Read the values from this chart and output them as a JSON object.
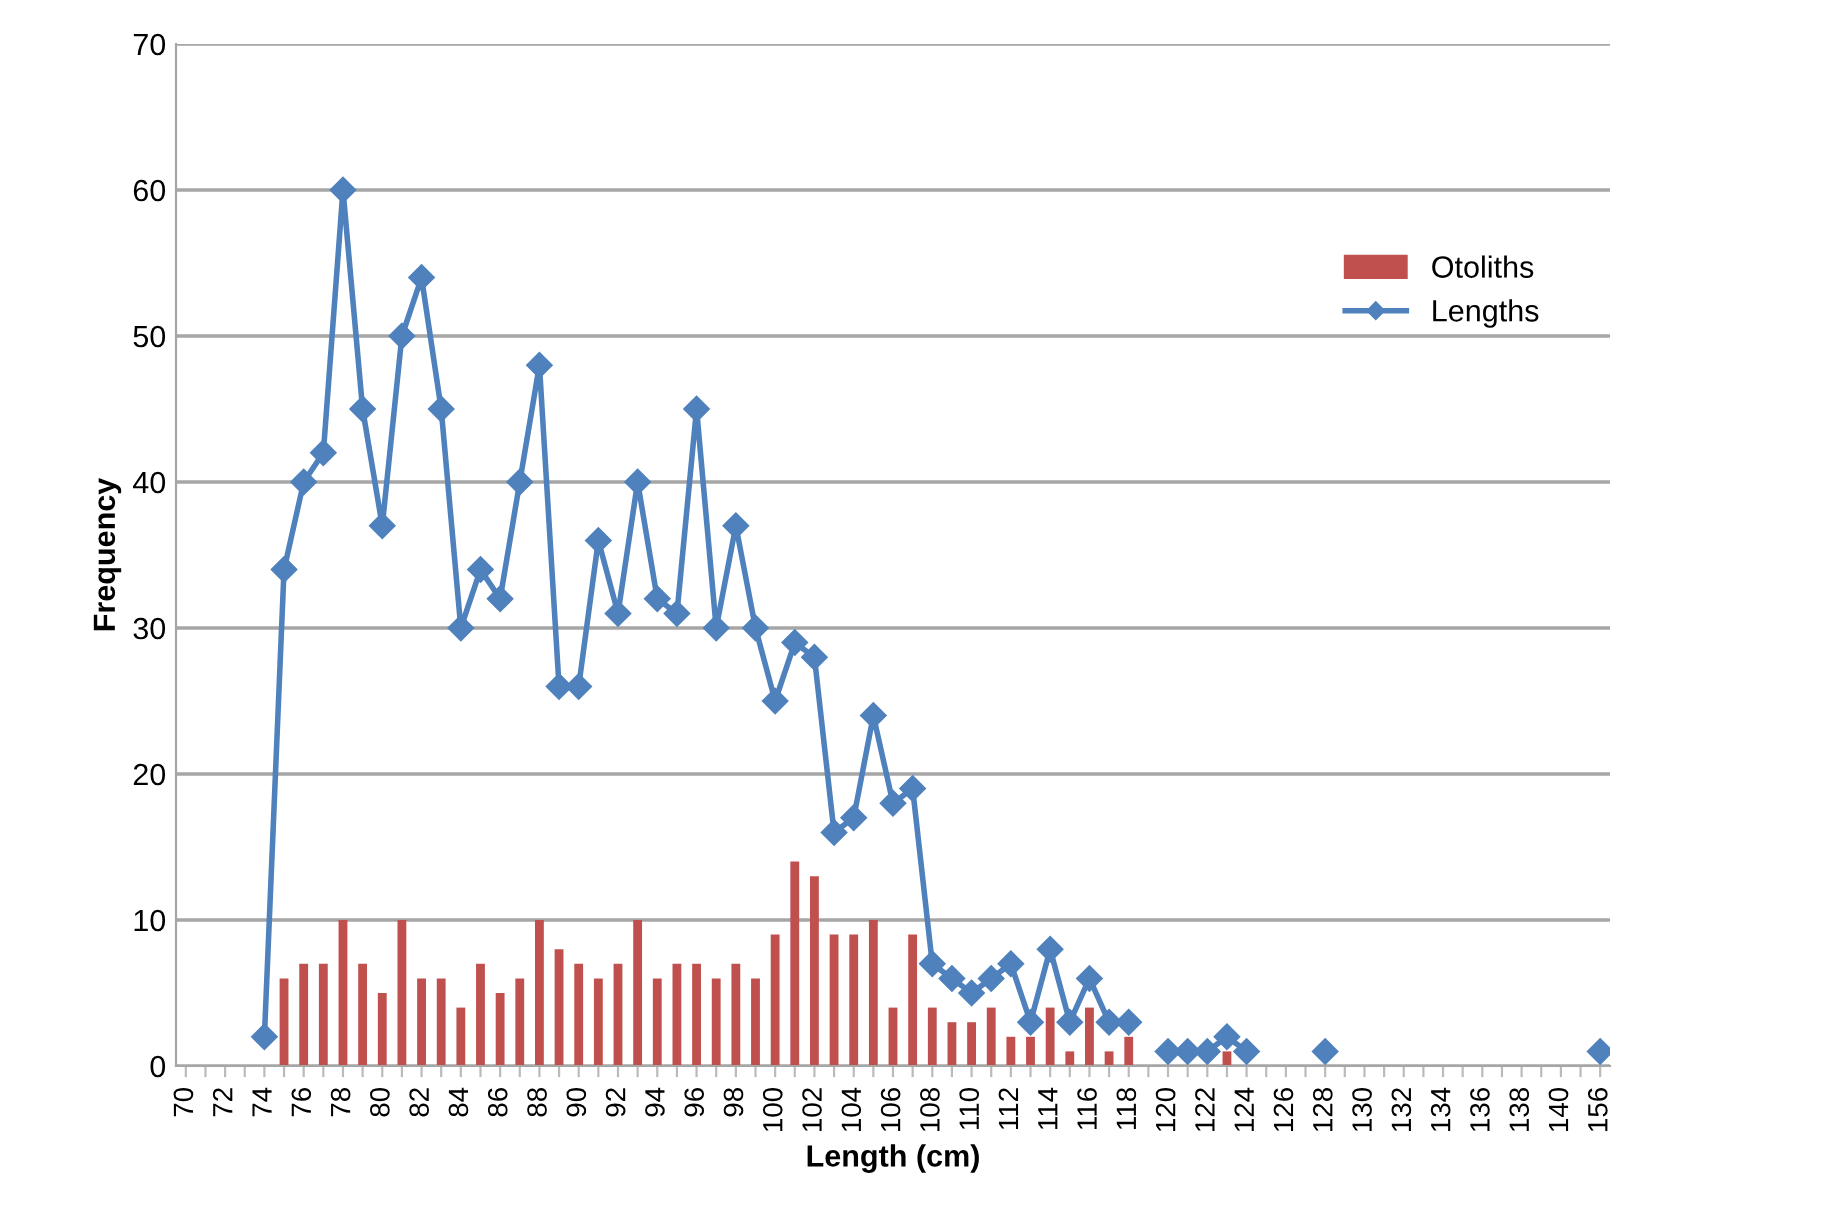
{
  "chart_data": {
    "type": "bar",
    "xlabel": "Length (cm)",
    "ylabel": "Frequency",
    "categories": [
      "70",
      null,
      "72",
      null,
      "74",
      null,
      "76",
      null,
      "78",
      null,
      "80",
      null,
      "82",
      null,
      "84",
      null,
      "86",
      null,
      "88",
      null,
      "90",
      null,
      "92",
      null,
      "94",
      null,
      "96",
      null,
      "98",
      null,
      "100",
      null,
      "102",
      null,
      "104",
      null,
      "106",
      null,
      "108",
      null,
      "110",
      null,
      "112",
      null,
      "114",
      null,
      "116",
      null,
      "118",
      null,
      "120",
      null,
      "122",
      null,
      "124",
      null,
      "126",
      null,
      "128",
      null,
      "130",
      null,
      "132",
      null,
      "134",
      null,
      "136",
      null,
      "138",
      null,
      "140",
      null,
      "156"
    ],
    "series": [
      {
        "name": "Otoliths",
        "color": "#c0504d",
        "values": [
          null,
          null,
          null,
          null,
          null,
          6,
          7,
          7,
          10,
          7,
          5,
          10,
          6,
          6,
          4,
          7,
          5,
          6,
          10,
          8,
          7,
          6,
          7,
          10,
          6,
          7,
          7,
          6,
          7,
          6,
          9,
          14,
          13,
          9,
          9,
          10,
          4,
          9,
          4,
          3,
          3,
          4,
          2,
          2,
          4,
          1,
          4,
          1,
          2,
          null,
          null,
          null,
          null,
          1,
          null,
          null,
          null,
          null,
          null,
          null,
          null,
          null,
          null,
          null,
          null,
          null,
          null,
          null,
          null,
          null,
          null,
          null,
          null
        ]
      },
      {
        "name": "Lengths",
        "type": "line",
        "color": "#4f81bd",
        "marker": "diamond",
        "values": [
          null,
          null,
          null,
          null,
          2,
          34,
          40,
          42,
          60,
          45,
          37,
          50,
          54,
          45,
          30,
          34,
          32,
          40,
          48,
          26,
          26,
          36,
          31,
          40,
          32,
          31,
          45,
          30,
          37,
          30,
          25,
          29,
          28,
          16,
          17,
          24,
          18,
          19,
          7,
          6,
          5,
          6,
          7,
          3,
          8,
          3,
          6,
          3,
          3,
          null,
          1,
          1,
          1,
          2,
          1,
          null,
          null,
          null,
          1,
          null,
          null,
          null,
          null,
          null,
          null,
          null,
          null,
          null,
          null,
          null,
          null,
          null,
          1
        ]
      }
    ],
    "ylim": [
      0,
      70
    ],
    "yticks": [
      0,
      10,
      20,
      30,
      40,
      50,
      60,
      70
    ],
    "grid": "y",
    "legend": "top right"
  }
}
